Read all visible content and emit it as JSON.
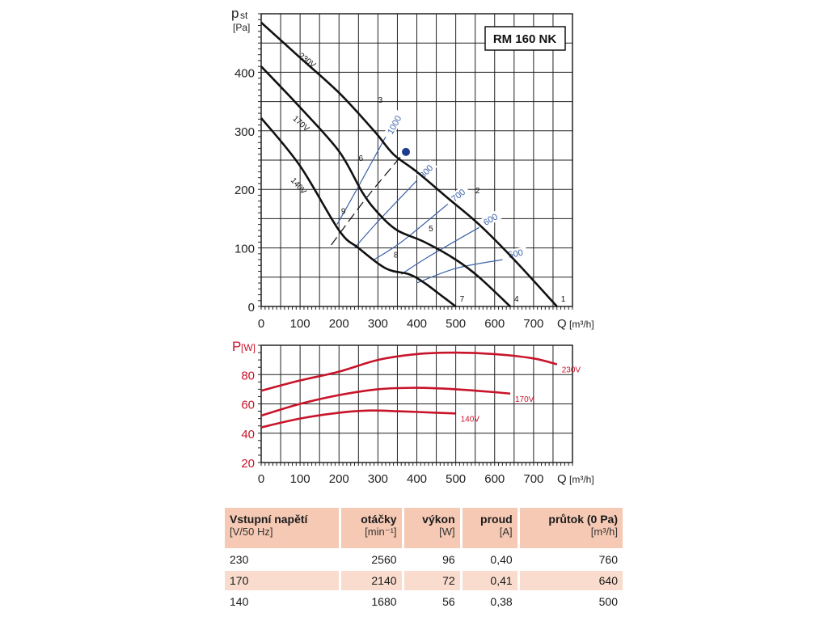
{
  "chart_data": [
    {
      "type": "line",
      "title": "RM 160 NK",
      "ylabel": "p",
      "ylabel_sub": "st",
      "yunit": "[Pa]",
      "xlabel": "Q",
      "xunit": "[m³/h]",
      "xlim": [
        0,
        800
      ],
      "ylim": [
        0,
        500
      ],
      "xticks": [
        0,
        100,
        200,
        300,
        400,
        500,
        600,
        700
      ],
      "yticks": [
        0,
        100,
        200,
        300,
        400
      ],
      "series": [
        {
          "name": "230V",
          "x": [
            0,
            100,
            200,
            290,
            340,
            400,
            480,
            560,
            650,
            760
          ],
          "y": [
            485,
            425,
            365,
            300,
            260,
            230,
            185,
            140,
            80,
            0
          ]
        },
        {
          "name": "170V",
          "x": [
            0,
            100,
            200,
            260,
            300,
            350,
            420,
            500,
            560,
            640
          ],
          "y": [
            410,
            340,
            265,
            195,
            160,
            130,
            110,
            80,
            50,
            0
          ]
        },
        {
          "name": "140V",
          "x": [
            0,
            100,
            200,
            250,
            320,
            380,
            420,
            470,
            500
          ],
          "y": [
            322,
            240,
            130,
            100,
            65,
            55,
            40,
            15,
            0
          ]
        }
      ],
      "rpm_curves": [
        {
          "label": "1000",
          "x": [
            195,
            250,
            320
          ],
          "y": [
            140,
            205,
            290
          ]
        },
        {
          "label": "800",
          "x": [
            240,
            300,
            400
          ],
          "y": [
            100,
            145,
            215
          ]
        },
        {
          "label": "700",
          "x": [
            290,
            360,
            480
          ],
          "y": [
            80,
            110,
            175
          ]
        },
        {
          "label": "600",
          "x": [
            360,
            430,
            560
          ],
          "y": [
            55,
            85,
            135
          ]
        },
        {
          "label": "500",
          "x": [
            400,
            500,
            620
          ],
          "y": [
            40,
            65,
            80
          ]
        }
      ],
      "dashed_line": {
        "x": [
          180,
          270,
          370
        ],
        "y": [
          105,
          185,
          265
        ]
      },
      "operating_point": {
        "x": 372,
        "y": 264
      },
      "points": [
        {
          "label": "1",
          "x": 760,
          "y": 0
        },
        {
          "label": "2",
          "x": 540,
          "y": 185
        },
        {
          "label": "3",
          "x": 290,
          "y": 340
        },
        {
          "label": "4",
          "x": 640,
          "y": 0
        },
        {
          "label": "5",
          "x": 420,
          "y": 120
        },
        {
          "label": "6",
          "x": 240,
          "y": 240
        },
        {
          "label": "7",
          "x": 500,
          "y": 0
        },
        {
          "label": "8",
          "x": 330,
          "y": 75
        },
        {
          "label": "9",
          "x": 195,
          "y": 150
        }
      ]
    },
    {
      "type": "line",
      "ylabel": "P",
      "yunit": "[W]",
      "xlabel": "Q",
      "xunit": "[m³/h]",
      "xlim": [
        0,
        800
      ],
      "ylim": [
        20,
        100
      ],
      "xticks": [
        0,
        100,
        200,
        300,
        400,
        500,
        600,
        700
      ],
      "yticks": [
        20,
        40,
        60,
        80
      ],
      "series": [
        {
          "name": "230V",
          "x": [
            0,
            100,
            200,
            300,
            400,
            500,
            600,
            700,
            760
          ],
          "y": [
            69,
            76,
            82,
            90,
            94,
            95,
            94,
            91,
            87
          ]
        },
        {
          "name": "170V",
          "x": [
            0,
            100,
            200,
            300,
            400,
            500,
            600,
            640
          ],
          "y": [
            52,
            60,
            66,
            70,
            71,
            70,
            68,
            67
          ]
        },
        {
          "name": "140V",
          "x": [
            0,
            100,
            200,
            280,
            350,
            450,
            500
          ],
          "y": [
            44,
            50,
            54,
            55.5,
            55,
            54,
            53.5
          ]
        }
      ]
    }
  ],
  "table": {
    "headers": [
      {
        "title": "Vstupní napětí",
        "unit": "[V/50 Hz]"
      },
      {
        "title": "otáčky",
        "unit": "[min⁻¹]"
      },
      {
        "title": "výkon",
        "unit": "[W]"
      },
      {
        "title": "proud",
        "unit": "[A]"
      },
      {
        "title": "průtok (0 Pa)",
        "unit": "[m³/h]"
      }
    ],
    "rows": [
      [
        "230",
        "2560",
        "96",
        "0,40",
        "760"
      ],
      [
        "170",
        "2140",
        "72",
        "0,41",
        "640"
      ],
      [
        "140",
        "1680",
        "56",
        "0,38",
        "500"
      ]
    ]
  },
  "colors": {
    "curve": "#111111",
    "rpm": "#3b62a8",
    "power": "#c8142a",
    "point": "#1f3d8f",
    "grid": "#222222",
    "table_shade": "#f9dccd"
  }
}
